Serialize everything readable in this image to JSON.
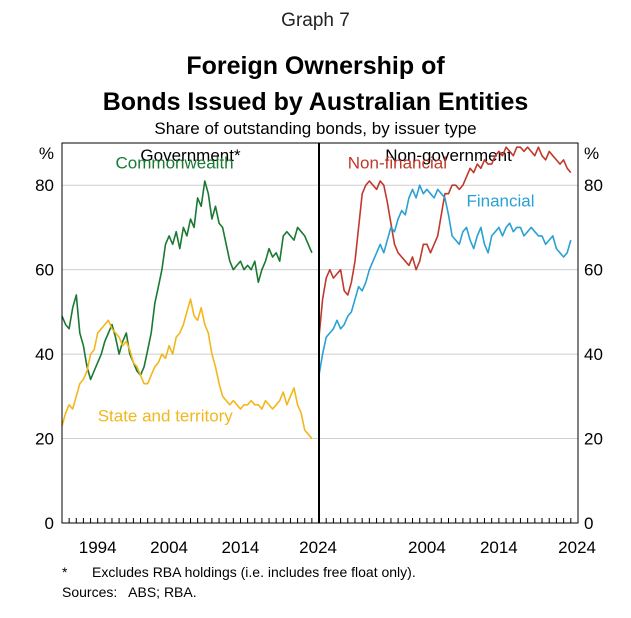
{
  "header": {
    "graph_label": "Graph 7",
    "title_line1": "Foreign Ownership of",
    "title_line2": "Bonds Issued by Australian Entities",
    "subtitle": "Share of outstanding bonds, by issuer type"
  },
  "footnotes": {
    "asterisk_mark": "*",
    "asterisk_text": "Excludes RBA holdings (i.e. includes free float only).",
    "sources": "Sources:   ABS; RBA."
  },
  "colors": {
    "commonwealth": "#1a7a33",
    "state_and_territory": "#f2b71c",
    "non_financial": "#c0392b",
    "financial": "#2aa1d3"
  },
  "chart_data": [
    {
      "type": "line",
      "panel_title": "Government*",
      "ylabel": "%",
      "ylim": [
        0,
        90
      ],
      "yticks": [
        "0",
        "20",
        "40",
        "60",
        "80"
      ],
      "yticks_values": [
        0,
        20,
        40,
        60,
        80
      ],
      "xlim": [
        1989,
        2025
      ],
      "xticks": [
        "1994",
        "2004",
        "2014",
        "2024"
      ],
      "xticks_values": [
        1994,
        2004,
        2014,
        2024
      ],
      "grid": true,
      "series": [
        {
          "name": "Commonwealth",
          "color_key": "commonwealth",
          "label_at": [
            1996.5,
            84
          ],
          "x": [
            1989.0,
            1989.5,
            1990.0,
            1990.5,
            1991.0,
            1991.5,
            1992.0,
            1992.5,
            1993.0,
            1993.5,
            1994.0,
            1994.5,
            1995.0,
            1995.5,
            1996.0,
            1996.5,
            1997.0,
            1997.5,
            1998.0,
            1998.5,
            1999.0,
            1999.5,
            2000.0,
            2000.5,
            2001.0,
            2001.5,
            2002.0,
            2002.5,
            2003.0,
            2003.5,
            2004.0,
            2004.5,
            2005.0,
            2005.5,
            2006.0,
            2006.5,
            2007.0,
            2007.5,
            2008.0,
            2008.5,
            2009.0,
            2009.5,
            2010.0,
            2010.5,
            2011.0,
            2011.5,
            2012.0,
            2012.5,
            2013.0,
            2013.5,
            2014.0,
            2014.5,
            2015.0,
            2015.5,
            2016.0,
            2016.5,
            2017.0,
            2017.5,
            2018.0,
            2018.5,
            2019.0,
            2019.5,
            2020.0,
            2020.5,
            2021.0,
            2021.5,
            2022.0,
            2022.5,
            2023.0,
            2023.5,
            2024.0
          ],
          "y": [
            49,
            47,
            46,
            51,
            54,
            45,
            42,
            37,
            34,
            36,
            38,
            40,
            43,
            45,
            47,
            44,
            40,
            43,
            45,
            40,
            38,
            36,
            35,
            37,
            41,
            45,
            52,
            56,
            60,
            66,
            68,
            66,
            69,
            65,
            70,
            68,
            72,
            70,
            77,
            75,
            81,
            78,
            72,
            75,
            71,
            70,
            66,
            62,
            60,
            61,
            62,
            60,
            61,
            60,
            62,
            57,
            60,
            62,
            65,
            63,
            64,
            62,
            68,
            69,
            68,
            67,
            70,
            69,
            68,
            66,
            64
          ]
        },
        {
          "name": "State and territory",
          "color_key": "state_and_territory",
          "label_at": [
            1994,
            24
          ],
          "x": [
            1989.0,
            1989.5,
            1990.0,
            1990.5,
            1991.0,
            1991.5,
            1992.0,
            1992.5,
            1993.0,
            1993.5,
            1994.0,
            1994.5,
            1995.0,
            1995.5,
            1996.0,
            1996.5,
            1997.0,
            1997.5,
            1998.0,
            1998.5,
            1999.0,
            1999.5,
            2000.0,
            2000.5,
            2001.0,
            2001.5,
            2002.0,
            2002.5,
            2003.0,
            2003.5,
            2004.0,
            2004.5,
            2005.0,
            2005.5,
            2006.0,
            2006.5,
            2007.0,
            2007.5,
            2008.0,
            2008.5,
            2009.0,
            2009.5,
            2010.0,
            2010.5,
            2011.0,
            2011.5,
            2012.0,
            2012.5,
            2013.0,
            2013.5,
            2014.0,
            2014.5,
            2015.0,
            2015.5,
            2016.0,
            2016.5,
            2017.0,
            2017.5,
            2018.0,
            2018.5,
            2019.0,
            2019.5,
            2020.0,
            2020.5,
            2021.0,
            2021.5,
            2022.0,
            2022.5,
            2023.0,
            2023.5,
            2024.0
          ],
          "y": [
            23,
            26,
            28,
            27,
            30,
            33,
            34,
            36,
            40,
            41,
            45,
            46,
            47,
            48,
            46,
            45,
            44,
            42,
            43,
            41,
            38,
            37,
            35,
            33,
            33,
            35,
            37,
            38,
            40,
            39,
            42,
            40,
            44,
            45,
            47,
            50,
            53,
            49,
            48,
            51,
            47,
            45,
            40,
            37,
            33,
            30,
            29,
            28,
            29,
            28,
            27,
            28,
            28,
            29,
            28,
            28,
            27,
            29,
            28,
            27,
            28,
            29,
            31,
            28,
            30,
            32,
            28,
            26,
            22,
            21,
            20
          ]
        }
      ]
    },
    {
      "type": "line",
      "panel_title": "Non-government",
      "ylabel": "%",
      "ylim": [
        0,
        90
      ],
      "yticks": [
        "0",
        "20",
        "40",
        "60",
        "80"
      ],
      "yticks_values": [
        0,
        20,
        40,
        60,
        80
      ],
      "xlim": [
        1989,
        2025
      ],
      "xticks": [
        "2004",
        "2014",
        "2024"
      ],
      "xticks_values": [
        2004,
        2014,
        2024
      ],
      "grid": true,
      "series": [
        {
          "name": "Non-financial",
          "color_key": "non_financial",
          "label_at": [
            1993,
            84
          ],
          "x": [
            1989.0,
            1989.5,
            1990.0,
            1990.5,
            1991.0,
            1991.5,
            1992.0,
            1992.5,
            1993.0,
            1993.5,
            1994.0,
            1994.5,
            1995.0,
            1995.5,
            1996.0,
            1996.5,
            1997.0,
            1997.5,
            1998.0,
            1998.5,
            1999.0,
            1999.5,
            2000.0,
            2000.5,
            2001.0,
            2001.5,
            2002.0,
            2002.5,
            2003.0,
            2003.5,
            2004.0,
            2004.5,
            2005.0,
            2005.5,
            2006.0,
            2006.5,
            2007.0,
            2007.5,
            2008.0,
            2008.5,
            2009.0,
            2009.5,
            2010.0,
            2010.5,
            2011.0,
            2011.5,
            2012.0,
            2012.5,
            2013.0,
            2013.5,
            2014.0,
            2014.5,
            2015.0,
            2015.5,
            2016.0,
            2016.5,
            2017.0,
            2017.5,
            2018.0,
            2018.5,
            2019.0,
            2019.5,
            2020.0,
            2020.5,
            2021.0,
            2021.5,
            2022.0,
            2022.5,
            2023.0,
            2023.5,
            2024.0
          ],
          "y": [
            44,
            53,
            58,
            60,
            58,
            59,
            60,
            55,
            54,
            57,
            62,
            70,
            78,
            80,
            81,
            80,
            79,
            81,
            80,
            76,
            71,
            66,
            64,
            63,
            62,
            61,
            63,
            60,
            62,
            66,
            66,
            64,
            66,
            68,
            73,
            78,
            78,
            80,
            80,
            79,
            80,
            82,
            84,
            83,
            85,
            84,
            86,
            85,
            85,
            87,
            88,
            87,
            89,
            88,
            87,
            89,
            89,
            88,
            89,
            88,
            87,
            89,
            87,
            86,
            88,
            87,
            86,
            85,
            86,
            84,
            83
          ]
        },
        {
          "name": "Financial",
          "color_key": "financial",
          "label_at": [
            2009.5,
            75
          ],
          "x": [
            1989.0,
            1989.5,
            1990.0,
            1990.5,
            1991.0,
            1991.5,
            1992.0,
            1992.5,
            1993.0,
            1993.5,
            1994.0,
            1994.5,
            1995.0,
            1995.5,
            1996.0,
            1996.5,
            1997.0,
            1997.5,
            1998.0,
            1998.5,
            1999.0,
            1999.5,
            2000.0,
            2000.5,
            2001.0,
            2001.5,
            2002.0,
            2002.5,
            2003.0,
            2003.5,
            2004.0,
            2004.5,
            2005.0,
            2005.5,
            2006.0,
            2006.5,
            2007.0,
            2007.5,
            2008.0,
            2008.5,
            2009.0,
            2009.5,
            2010.0,
            2010.5,
            2011.0,
            2011.5,
            2012.0,
            2012.5,
            2013.0,
            2013.5,
            2014.0,
            2014.5,
            2015.0,
            2015.5,
            2016.0,
            2016.5,
            2017.0,
            2017.5,
            2018.0,
            2018.5,
            2019.0,
            2019.5,
            2020.0,
            2020.5,
            2021.0,
            2021.5,
            2022.0,
            2022.5,
            2023.0,
            2023.5,
            2024.0
          ],
          "y": [
            35,
            40,
            44,
            45,
            46,
            48,
            46,
            47,
            49,
            50,
            53,
            56,
            55,
            57,
            60,
            62,
            64,
            66,
            64,
            67,
            70,
            69,
            72,
            74,
            73,
            77,
            79,
            77,
            80,
            78,
            79,
            78,
            77,
            79,
            78,
            77,
            73,
            68,
            67,
            66,
            69,
            70,
            67,
            65,
            68,
            70,
            66,
            64,
            68,
            69,
            70,
            68,
            70,
            71,
            69,
            70,
            70,
            68,
            69,
            70,
            69,
            68,
            68,
            66,
            67,
            68,
            65,
            64,
            63,
            64,
            67
          ]
        }
      ]
    }
  ]
}
